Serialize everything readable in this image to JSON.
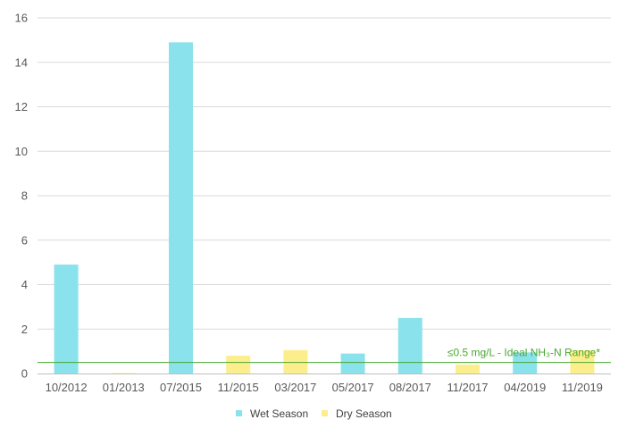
{
  "chart_data": {
    "type": "bar",
    "categories": [
      "10/2012",
      "01/2013",
      "07/2015",
      "11/2015",
      "03/2017",
      "05/2017",
      "08/2017",
      "11/2017",
      "04/2019",
      "11/2019"
    ],
    "series": [
      {
        "name": "Wet Season",
        "color": "#8ae2ec",
        "values": [
          4.9,
          null,
          14.9,
          null,
          null,
          0.9,
          2.5,
          null,
          0.95,
          null
        ]
      },
      {
        "name": "Dry Season",
        "color": "#fcee8c",
        "values": [
          null,
          0.02,
          null,
          0.8,
          1.05,
          null,
          null,
          0.4,
          null,
          1.05
        ]
      }
    ],
    "ylim": [
      0,
      16
    ],
    "yticks": [
      0,
      2,
      4,
      6,
      8,
      10,
      12,
      14,
      16
    ],
    "grid": true,
    "legend_position": "bottom",
    "reference_line": {
      "value": 0.5,
      "color": "#4aa832",
      "label": "≤0.5 mg/L - Ideal NH₃-N Range*"
    },
    "title": "",
    "xlabel": "",
    "ylabel": ""
  }
}
